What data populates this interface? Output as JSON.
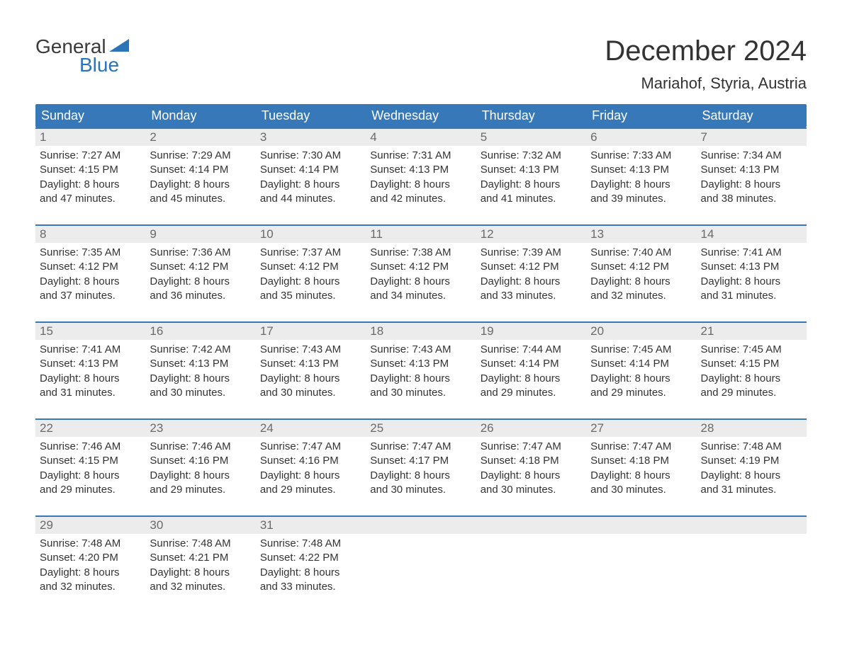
{
  "logo": {
    "line1": "General",
    "line2": "Blue"
  },
  "title": "December 2024",
  "location": "Mariahof, Styria, Austria",
  "header_bg": "#3678b8",
  "daynum_bg": "#ececec",
  "week_border": "#3678b8",
  "weekdays": [
    "Sunday",
    "Monday",
    "Tuesday",
    "Wednesday",
    "Thursday",
    "Friday",
    "Saturday"
  ],
  "weeks": [
    [
      {
        "n": "1",
        "sr": "7:27 AM",
        "ss": "4:15 PM",
        "dl": "8 hours",
        "dm": "and 47 minutes."
      },
      {
        "n": "2",
        "sr": "7:29 AM",
        "ss": "4:14 PM",
        "dl": "8 hours",
        "dm": "and 45 minutes."
      },
      {
        "n": "3",
        "sr": "7:30 AM",
        "ss": "4:14 PM",
        "dl": "8 hours",
        "dm": "and 44 minutes."
      },
      {
        "n": "4",
        "sr": "7:31 AM",
        "ss": "4:13 PM",
        "dl": "8 hours",
        "dm": "and 42 minutes."
      },
      {
        "n": "5",
        "sr": "7:32 AM",
        "ss": "4:13 PM",
        "dl": "8 hours",
        "dm": "and 41 minutes."
      },
      {
        "n": "6",
        "sr": "7:33 AM",
        "ss": "4:13 PM",
        "dl": "8 hours",
        "dm": "and 39 minutes."
      },
      {
        "n": "7",
        "sr": "7:34 AM",
        "ss": "4:13 PM",
        "dl": "8 hours",
        "dm": "and 38 minutes."
      }
    ],
    [
      {
        "n": "8",
        "sr": "7:35 AM",
        "ss": "4:12 PM",
        "dl": "8 hours",
        "dm": "and 37 minutes."
      },
      {
        "n": "9",
        "sr": "7:36 AM",
        "ss": "4:12 PM",
        "dl": "8 hours",
        "dm": "and 36 minutes."
      },
      {
        "n": "10",
        "sr": "7:37 AM",
        "ss": "4:12 PM",
        "dl": "8 hours",
        "dm": "and 35 minutes."
      },
      {
        "n": "11",
        "sr": "7:38 AM",
        "ss": "4:12 PM",
        "dl": "8 hours",
        "dm": "and 34 minutes."
      },
      {
        "n": "12",
        "sr": "7:39 AM",
        "ss": "4:12 PM",
        "dl": "8 hours",
        "dm": "and 33 minutes."
      },
      {
        "n": "13",
        "sr": "7:40 AM",
        "ss": "4:12 PM",
        "dl": "8 hours",
        "dm": "and 32 minutes."
      },
      {
        "n": "14",
        "sr": "7:41 AM",
        "ss": "4:13 PM",
        "dl": "8 hours",
        "dm": "and 31 minutes."
      }
    ],
    [
      {
        "n": "15",
        "sr": "7:41 AM",
        "ss": "4:13 PM",
        "dl": "8 hours",
        "dm": "and 31 minutes."
      },
      {
        "n": "16",
        "sr": "7:42 AM",
        "ss": "4:13 PM",
        "dl": "8 hours",
        "dm": "and 30 minutes."
      },
      {
        "n": "17",
        "sr": "7:43 AM",
        "ss": "4:13 PM",
        "dl": "8 hours",
        "dm": "and 30 minutes."
      },
      {
        "n": "18",
        "sr": "7:43 AM",
        "ss": "4:13 PM",
        "dl": "8 hours",
        "dm": "and 30 minutes."
      },
      {
        "n": "19",
        "sr": "7:44 AM",
        "ss": "4:14 PM",
        "dl": "8 hours",
        "dm": "and 29 minutes."
      },
      {
        "n": "20",
        "sr": "7:45 AM",
        "ss": "4:14 PM",
        "dl": "8 hours",
        "dm": "and 29 minutes."
      },
      {
        "n": "21",
        "sr": "7:45 AM",
        "ss": "4:15 PM",
        "dl": "8 hours",
        "dm": "and 29 minutes."
      }
    ],
    [
      {
        "n": "22",
        "sr": "7:46 AM",
        "ss": "4:15 PM",
        "dl": "8 hours",
        "dm": "and 29 minutes."
      },
      {
        "n": "23",
        "sr": "7:46 AM",
        "ss": "4:16 PM",
        "dl": "8 hours",
        "dm": "and 29 minutes."
      },
      {
        "n": "24",
        "sr": "7:47 AM",
        "ss": "4:16 PM",
        "dl": "8 hours",
        "dm": "and 29 minutes."
      },
      {
        "n": "25",
        "sr": "7:47 AM",
        "ss": "4:17 PM",
        "dl": "8 hours",
        "dm": "and 30 minutes."
      },
      {
        "n": "26",
        "sr": "7:47 AM",
        "ss": "4:18 PM",
        "dl": "8 hours",
        "dm": "and 30 minutes."
      },
      {
        "n": "27",
        "sr": "7:47 AM",
        "ss": "4:18 PM",
        "dl": "8 hours",
        "dm": "and 30 minutes."
      },
      {
        "n": "28",
        "sr": "7:48 AM",
        "ss": "4:19 PM",
        "dl": "8 hours",
        "dm": "and 31 minutes."
      }
    ],
    [
      {
        "n": "29",
        "sr": "7:48 AM",
        "ss": "4:20 PM",
        "dl": "8 hours",
        "dm": "and 32 minutes."
      },
      {
        "n": "30",
        "sr": "7:48 AM",
        "ss": "4:21 PM",
        "dl": "8 hours",
        "dm": "and 32 minutes."
      },
      {
        "n": "31",
        "sr": "7:48 AM",
        "ss": "4:22 PM",
        "dl": "8 hours",
        "dm": "and 33 minutes."
      },
      null,
      null,
      null,
      null
    ]
  ],
  "labels": {
    "sunrise": "Sunrise: ",
    "sunset": "Sunset: ",
    "daylight": "Daylight: "
  }
}
